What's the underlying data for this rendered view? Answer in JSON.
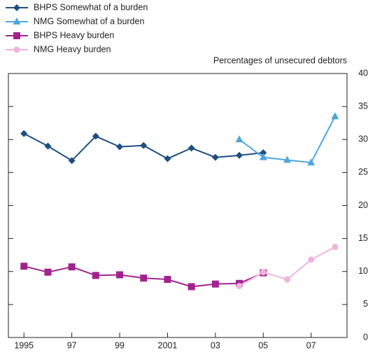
{
  "chart_data": {
    "type": "line",
    "y_label": "Percentages of unsecured debtors",
    "xlim": [
      1994.35,
      2008.5
    ],
    "xticks": [
      {
        "value": 1995,
        "label": "1995"
      },
      {
        "value": 1997,
        "label": "97"
      },
      {
        "value": 1999,
        "label": "99"
      },
      {
        "value": 2001,
        "label": "2001"
      },
      {
        "value": 2003,
        "label": "03"
      },
      {
        "value": 2005,
        "label": "05"
      },
      {
        "value": 2007,
        "label": "07"
      }
    ],
    "ylim": [
      0,
      40
    ],
    "yticks": [
      0,
      5,
      10,
      15,
      20,
      25,
      30,
      35,
      40
    ],
    "series": [
      {
        "name": "BHPS Somewhat of a burden",
        "color": "#1d4f80",
        "marker": "diamond",
        "x": [
          1995,
          1996,
          1997,
          1998,
          1999,
          2000,
          2001,
          2002,
          2003,
          2004,
          2005
        ],
        "values": [
          30.9,
          29.0,
          26.8,
          30.5,
          28.9,
          29.1,
          27.1,
          28.7,
          27.3,
          27.6,
          28.0
        ]
      },
      {
        "name": "NMG Somewhat of a burden",
        "color": "#4fa6dc",
        "marker": "triangle",
        "x": [
          2004,
          2005,
          2006,
          2007,
          2008
        ],
        "values": [
          30.0,
          27.3,
          26.9,
          26.5,
          33.5
        ]
      },
      {
        "name": "BHPS Heavy burden",
        "color": "#a3238e",
        "marker": "square",
        "x": [
          1995,
          1996,
          1997,
          1998,
          1999,
          2000,
          2001,
          2002,
          2003,
          2004,
          2005
        ],
        "values": [
          10.8,
          9.9,
          10.7,
          9.4,
          9.5,
          9.0,
          8.8,
          7.7,
          8.1,
          8.2,
          9.8
        ]
      },
      {
        "name": "NMG Heavy burden",
        "color": "#f0b4dc",
        "marker": "circle",
        "x": [
          2004,
          2005,
          2006,
          2007,
          2008
        ],
        "values": [
          7.8,
          9.9,
          8.8,
          11.8,
          13.7
        ]
      }
    ]
  }
}
